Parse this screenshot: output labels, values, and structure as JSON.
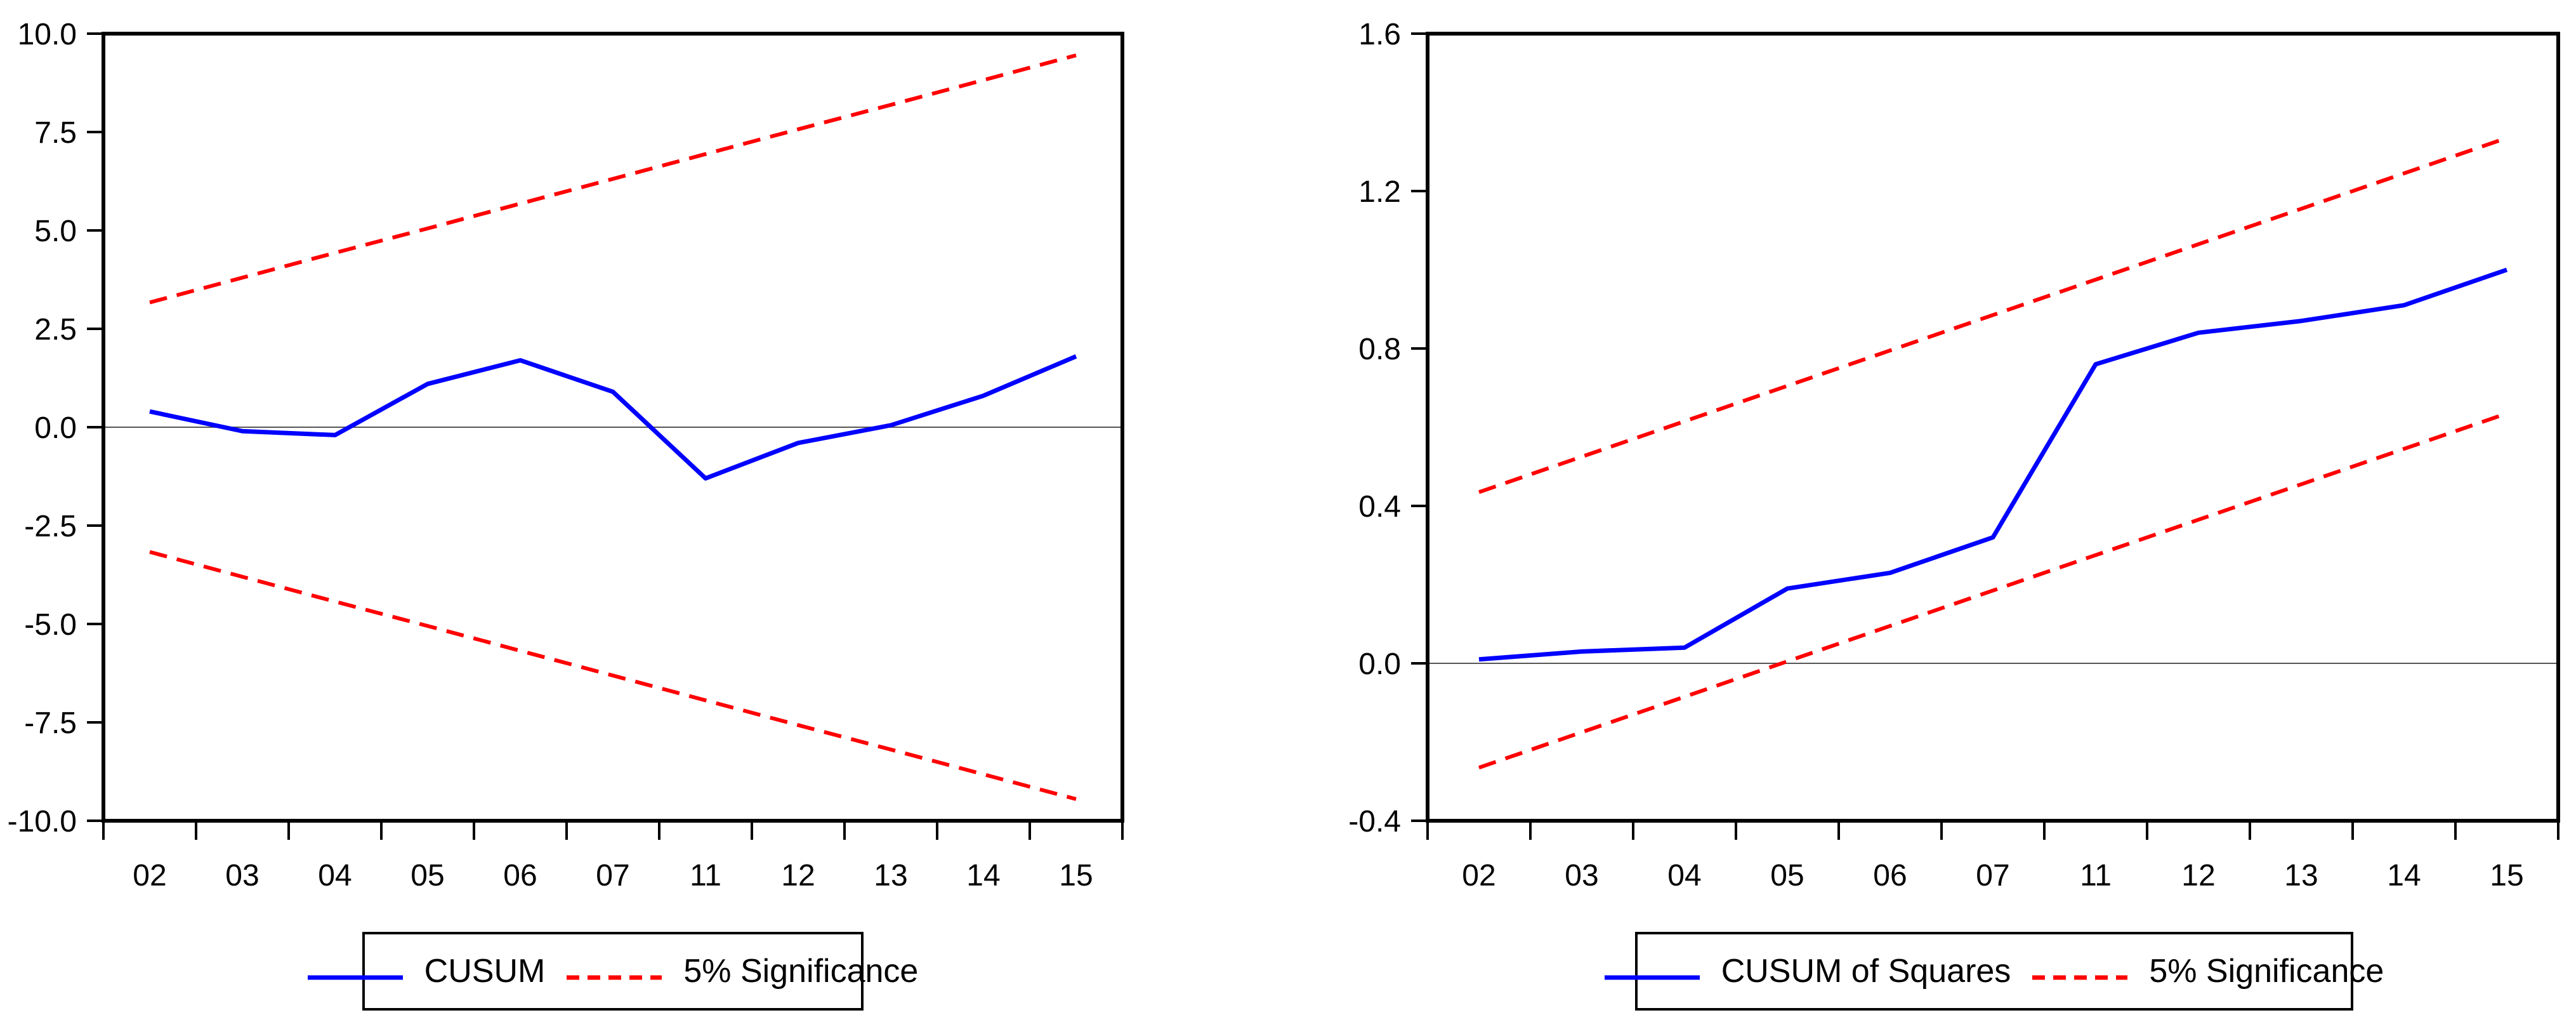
{
  "page": {
    "background": "#ffffff",
    "description": "Two EViews recursive-estimation stability test plots: CUSUM (left) and CUSUM of Squares (right), each with 5% significance bounds"
  },
  "colors": {
    "series_line": "#0000ff",
    "significance_line": "#ff0000",
    "frame": "#000000",
    "zero_line": "#555555",
    "text": "#000000"
  },
  "chart_data": [
    {
      "type": "line",
      "panel": "left",
      "title": "",
      "xlabel": "",
      "ylabel": "",
      "categories": [
        "02",
        "03",
        "04",
        "05",
        "06",
        "07",
        "11",
        "12",
        "13",
        "14",
        "15"
      ],
      "ylim": [
        -10.0,
        10.0
      ],
      "y_ticks": [
        "10.0",
        "7.5",
        "5.0",
        "2.5",
        "0.0",
        "-2.5",
        "-5.0",
        "-7.5",
        "-10.0"
      ],
      "grid": "zero-line-only",
      "legend_position": "bottom-center",
      "series": [
        {
          "name": "CUSUM",
          "color": "#0000ff",
          "style": "solid",
          "values": [
            0.4,
            -0.1,
            -0.2,
            1.1,
            1.7,
            0.9,
            -1.3,
            -0.4,
            0.05,
            0.8,
            1.8
          ]
        },
        {
          "name": "5% Significance (upper)",
          "color": "#ff0000",
          "style": "dashed",
          "values": [
            3.17,
            3.8,
            4.43,
            5.05,
            5.68,
            6.31,
            6.94,
            7.57,
            8.19,
            8.82,
            9.45
          ]
        },
        {
          "name": "5% Significance (lower)",
          "color": "#ff0000",
          "style": "dashed",
          "values": [
            -3.17,
            -3.8,
            -4.43,
            -5.05,
            -5.68,
            -6.31,
            -6.94,
            -7.57,
            -8.19,
            -8.82,
            -9.45
          ]
        }
      ],
      "legend": [
        {
          "label": "CUSUM",
          "swatch": "solid-blue"
        },
        {
          "label": "5% Significance",
          "swatch": "dashed-red"
        }
      ]
    },
    {
      "type": "line",
      "panel": "right",
      "title": "",
      "xlabel": "",
      "ylabel": "",
      "categories": [
        "02",
        "03",
        "04",
        "05",
        "06",
        "07",
        "11",
        "12",
        "13",
        "14",
        "15"
      ],
      "ylim": [
        -0.4,
        1.6
      ],
      "y_ticks": [
        "1.6",
        "1.2",
        "0.8",
        "0.4",
        "0.0",
        "-0.4"
      ],
      "grid": "zero-line-only",
      "legend_position": "bottom-center",
      "series": [
        {
          "name": "CUSUM of Squares",
          "color": "#0000ff",
          "style": "solid",
          "values": [
            0.01,
            0.03,
            0.04,
            0.19,
            0.23,
            0.32,
            0.76,
            0.84,
            0.87,
            0.91,
            1.0
          ]
        },
        {
          "name": "5% Significance (upper)",
          "color": "#ff0000",
          "style": "dashed",
          "values": [
            0.435,
            0.525,
            0.615,
            0.705,
            0.795,
            0.885,
            0.975,
            1.065,
            1.155,
            1.245,
            1.335
          ]
        },
        {
          "name": "5% Significance (lower)",
          "color": "#ff0000",
          "style": "dashed",
          "values": [
            -0.265,
            -0.175,
            -0.085,
            0.005,
            0.095,
            0.185,
            0.275,
            0.365,
            0.455,
            0.545,
            0.635
          ]
        }
      ],
      "legend": [
        {
          "label": "CUSUM of Squares",
          "swatch": "solid-blue"
        },
        {
          "label": "5% Significance",
          "swatch": "dashed-red"
        }
      ]
    }
  ]
}
